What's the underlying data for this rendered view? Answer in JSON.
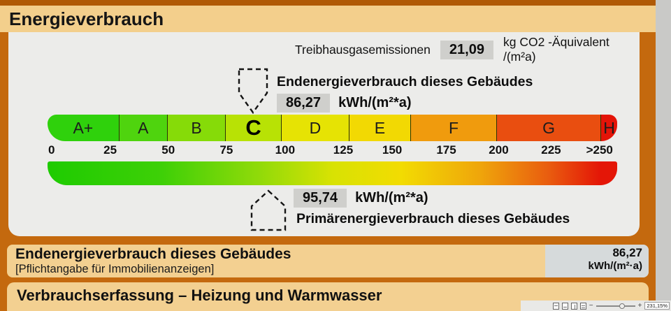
{
  "header": {
    "title": "Energieverbrauch"
  },
  "emissions": {
    "label": "Treibhausgasemissionen",
    "value": "21,09",
    "unit": "kg CO2 -Äquivalent /(m²a)"
  },
  "final_energy": {
    "label": "Endenergieverbrauch dieses Gebäudes",
    "value": "86,27",
    "unit": "kWh/(m²*a)"
  },
  "primary_energy": {
    "label": "Primärenergieverbrauch dieses Gebäudes",
    "value": "95,74",
    "unit": "kWh/(m²*a)"
  },
  "scale": {
    "classes": [
      {
        "label": "A+",
        "color": "#2fd10c",
        "width": 12.6,
        "current": false
      },
      {
        "label": "A",
        "color": "#4fd40e",
        "width": 8.5,
        "current": false
      },
      {
        "label": "B",
        "color": "#86db08",
        "width": 10.2,
        "current": false
      },
      {
        "label": "C",
        "color": "#b8e205",
        "width": 9.8,
        "current": true
      },
      {
        "label": "D",
        "color": "#e6e304",
        "width": 11.9,
        "current": false
      },
      {
        "label": "E",
        "color": "#f2d903",
        "width": 10.8,
        "current": false
      },
      {
        "label": "F",
        "color": "#f09b0d",
        "width": 15.1,
        "current": false
      },
      {
        "label": "G",
        "color": "#e94e10",
        "width": 18.3,
        "current": false
      },
      {
        "label": "H",
        "color": "#e41408",
        "width": 2.8,
        "current": false
      }
    ],
    "ticks": [
      "0",
      "25",
      "50",
      "75",
      "100",
      "125",
      "150",
      "175",
      "200",
      "225",
      ">250"
    ],
    "gradient_stops": [
      "#1ecb01 0%",
      "#3ed007 20%",
      "#90da09 37%",
      "#d8e203 50%",
      "#f2dc02 62%",
      "#efa50b 76%",
      "#e95c0f 88%",
      "#e41607 97%"
    ]
  },
  "summary": {
    "title": "Endenergieverbrauch dieses Gebäudes",
    "subtitle": "[Pflichtangabe für Immobilienanzeigen]",
    "value": "86,27",
    "unit": "kWh/(m²·a)"
  },
  "section_next": {
    "title": "Verbrauchserfassung – Heizung und Warmwasser"
  },
  "viewer": {
    "zoom_percent": "231,15%",
    "minus": "−",
    "plus": "+"
  },
  "colors": {
    "frame_orange": "#c4690e",
    "header_tan": "#f3cf8c",
    "content_bg": "#ececea",
    "value_box_gray": "#cfcfcc",
    "summary_value_bg": "#d6dadb"
  }
}
